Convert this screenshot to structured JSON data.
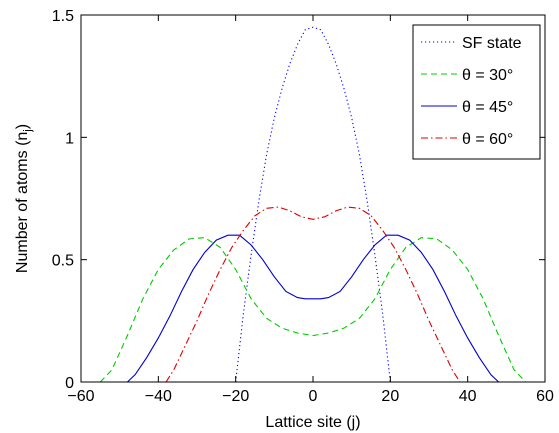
{
  "chart_data": {
    "type": "line",
    "xlabel": "Lattice site (j)",
    "ylabel": "Number of atoms (n_j)",
    "ylabel_main": "Number of atoms (n",
    "ylabel_sub": "j",
    "ylabel_close": ")",
    "xlim": [
      -60,
      60
    ],
    "ylim": [
      0,
      1.5
    ],
    "xticks": [
      -60,
      -40,
      -20,
      0,
      20,
      40,
      60
    ],
    "xtick_labels": [
      "−60",
      "−40",
      "−20",
      "0",
      "20",
      "40",
      "60"
    ],
    "yticks": [
      0,
      0.5,
      1,
      1.5
    ],
    "ytick_labels": [
      "0",
      "0.5",
      "1",
      "1.5"
    ],
    "grid": false,
    "legend_position": "top-right",
    "series": [
      {
        "name": "SF state",
        "color": "#0000ff",
        "style": "dotted",
        "x": [
          -20,
          -18,
          -16,
          -14,
          -12,
          -10,
          -8,
          -6,
          -4,
          -2,
          0,
          2,
          4,
          6,
          8,
          10,
          12,
          14,
          16,
          18,
          20
        ],
        "y": [
          0,
          0.28,
          0.52,
          0.74,
          0.93,
          1.08,
          1.2,
          1.3,
          1.38,
          1.44,
          1.45,
          1.44,
          1.38,
          1.3,
          1.2,
          1.08,
          0.93,
          0.74,
          0.52,
          0.28,
          0
        ]
      },
      {
        "name": "θ = 30°",
        "color": "#00cc00",
        "style": "dashed",
        "x": [
          -55,
          -52,
          -48,
          -44,
          -40,
          -36,
          -32,
          -28,
          -24,
          -20,
          -16,
          -12,
          -8,
          -4,
          0,
          4,
          8,
          12,
          16,
          20,
          24,
          28,
          32,
          36,
          40,
          44,
          48,
          52,
          55
        ],
        "y": [
          0,
          0.05,
          0.19,
          0.34,
          0.46,
          0.54,
          0.585,
          0.59,
          0.55,
          0.46,
          0.34,
          0.26,
          0.22,
          0.2,
          0.19,
          0.2,
          0.22,
          0.26,
          0.34,
          0.46,
          0.55,
          0.59,
          0.585,
          0.54,
          0.46,
          0.34,
          0.19,
          0.05,
          0
        ]
      },
      {
        "name": "θ = 45°",
        "color": "#0000cc",
        "style": "solid",
        "x": [
          -48,
          -46,
          -43,
          -40,
          -37,
          -34,
          -31,
          -28,
          -25,
          -22,
          -19,
          -16,
          -13,
          -10,
          -7,
          -4,
          -2,
          0,
          2,
          4,
          7,
          10,
          13,
          16,
          19,
          22,
          25,
          28,
          31,
          34,
          37,
          40,
          43,
          46,
          48
        ],
        "y": [
          0,
          0.03,
          0.1,
          0.18,
          0.27,
          0.37,
          0.46,
          0.53,
          0.58,
          0.6,
          0.6,
          0.56,
          0.5,
          0.43,
          0.37,
          0.345,
          0.34,
          0.34,
          0.34,
          0.345,
          0.37,
          0.43,
          0.5,
          0.56,
          0.6,
          0.6,
          0.58,
          0.53,
          0.46,
          0.37,
          0.27,
          0.18,
          0.1,
          0.03,
          0
        ]
      },
      {
        "name": "θ = 60°",
        "color": "#dd0000",
        "style": "dashdot",
        "x": [
          -38,
          -36,
          -33,
          -30,
          -27,
          -24,
          -21,
          -18,
          -15,
          -12,
          -9,
          -6,
          -3,
          0,
          3,
          6,
          9,
          12,
          15,
          18,
          21,
          24,
          27,
          30,
          33,
          36,
          38
        ],
        "y": [
          0,
          0.05,
          0.15,
          0.25,
          0.36,
          0.46,
          0.55,
          0.62,
          0.68,
          0.71,
          0.715,
          0.7,
          0.675,
          0.665,
          0.675,
          0.7,
          0.715,
          0.71,
          0.68,
          0.62,
          0.55,
          0.46,
          0.36,
          0.25,
          0.15,
          0.05,
          0
        ]
      }
    ]
  }
}
